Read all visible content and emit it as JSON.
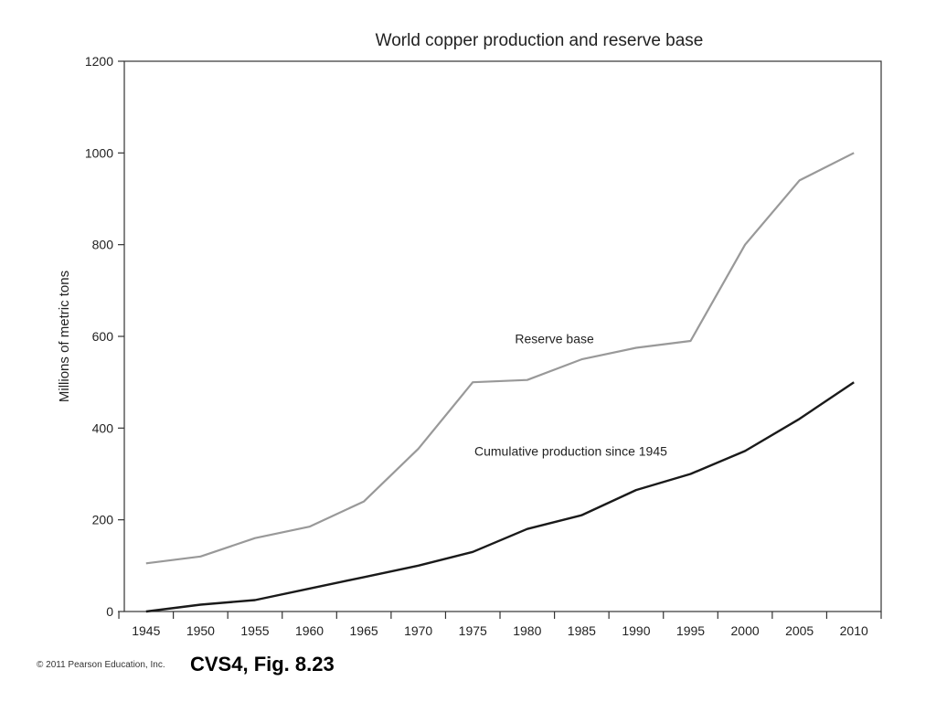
{
  "chart_data": {
    "type": "line",
    "title": "World copper production and reserve base",
    "ylabel": "Millions of metric tons",
    "xlabel": "",
    "x": [
      1945,
      1950,
      1955,
      1960,
      1965,
      1970,
      1975,
      1980,
      1985,
      1990,
      1995,
      2000,
      2005,
      2010
    ],
    "xlim": [
      1943,
      2012.5
    ],
    "ylim": [
      0,
      1200
    ],
    "yticks": [
      0,
      200,
      400,
      600,
      800,
      1000,
      1200
    ],
    "grid": false,
    "series": [
      {
        "name": "Reserve base",
        "color": "#999999",
        "values": [
          105,
          120,
          160,
          185,
          240,
          355,
          500,
          505,
          550,
          575,
          590,
          800,
          940,
          1000
        ]
      },
      {
        "name": "Cumulative production since 1945",
        "color": "#1a1a1a",
        "values": [
          0,
          15,
          25,
          50,
          75,
          100,
          130,
          180,
          210,
          265,
          300,
          350,
          420,
          500
        ]
      }
    ]
  },
  "footer": {
    "copyright": "© 2011 Pearson Education, Inc.",
    "figure_ref": "CVS4, Fig. 8.23"
  }
}
